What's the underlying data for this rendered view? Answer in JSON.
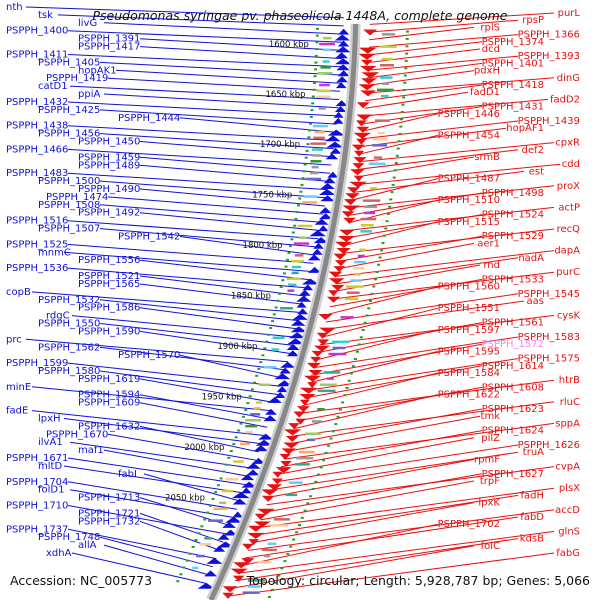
{
  "title": "Pseudomonas syringae pv. phaseolicola 1448A, complete genome",
  "footer": {
    "accession": "Accession: NC_005773",
    "summary": "Topology: circular; Length: 5,928,787 bp; Genes: 5,066"
  },
  "colors": {
    "reverse": "#1010d8",
    "forward": "#e81010",
    "highlight": "#ee88ee",
    "backbone": "#888888",
    "tick": "#2a9a2a",
    "text": "#111111"
  },
  "scale_ticks": [
    "1600 kbp",
    "1650 kbp",
    "1700 kbp",
    "1750 kbp",
    "1800 kbp",
    "1850 kbp",
    "1900 kbp",
    "1950 kbp",
    "2000 kbp",
    "2050 kbp"
  ],
  "left_labels": [
    "nth",
    "tsk",
    "livG",
    "PSPPH_1400",
    "PSPPH_1391",
    "PSPPH_1417",
    "PSPPH_1411",
    "PSPPH_1405",
    "hopAK1",
    "PSPPH_1419",
    "catD1",
    "ppiA",
    "PSPPH_1432",
    "PSPPH_1425",
    "PSPPH_1444",
    "PSPPH_1438",
    "PSPPH_1456",
    "PSPPH_1450",
    "PSPPH_1466",
    "PSPPH_1459",
    "PSPPH_1489",
    "PSPPH_1483",
    "PSPPH_1500",
    "PSPPH_1490",
    "PSPPH_1474",
    "PSPPH_1508",
    "PSPPH_1492",
    "PSPPH_1516",
    "PSPPH_1507",
    "PSPPH_1542",
    "PSPPH_1525",
    "mnmC",
    "PSPPH_1556",
    "PSPPH_1536",
    "PSPPH_1521",
    "PSPPH_1565",
    "copB",
    "PSPPH_1532",
    "PSPPH_1586",
    "rdgC",
    "PSPPH_1550",
    "PSPPH_1590",
    "prc",
    "PSPPH_1562",
    "PSPPH_1570",
    "PSPPH_1599",
    "PSPPH_1580",
    "PSPPH_1619",
    "minE",
    "PSPPH_1594",
    "PSPPH_1609",
    "fadE",
    "lpxH",
    "PSPPH_1632",
    "PSPPH_1670",
    "ilvA1",
    "maf1",
    "PSPPH_1671",
    "mltD",
    "fabI",
    "PSPPH_1704",
    "folD1",
    "PSPPH_1713",
    "PSPPH_1710",
    "PSPPH_1721",
    "PSPPH_1732",
    "PSPPH_1737",
    "PSPPH_1748",
    "allA",
    "xdhA"
  ],
  "right_labels": [
    "purL",
    "rpsP",
    "rplS",
    "PSPPH_1366",
    "PSPPH_1374",
    "dcd",
    "PSPPH_1393",
    "PSPPH_1401",
    "pdxH",
    "dinG",
    "PSPPH_1418",
    "fadD1",
    "fadD2",
    "PSPPH_1431",
    "PSPPH_1446",
    "PSPPH_1439",
    "hopAF1",
    "PSPPH_1454",
    "cpxR",
    "def2",
    "srmB",
    "cdd",
    "est",
    "PSPPH_1487",
    "proX",
    "PSPPH_1498",
    "PSPPH_1510",
    "actP",
    "PSPPH_1524",
    "PSPPH_1515",
    "recQ",
    "PSPPH_1529",
    "aer1",
    "dapA",
    "nadA",
    "rnd",
    "purC",
    "PSPPH_1533",
    "PSPPH_1560",
    "PSPPH_1545",
    "aas",
    "PSPPH_1551",
    "cysK",
    "PSPPH_1561",
    "PSPPH_1597",
    "PSPPH_1583",
    "PSPPH_1572",
    "PSPPH_1595",
    "PSPPH_1575",
    "PSPPH_1614",
    "PSPPH_1584",
    "htrB",
    "PSPPH_1608",
    "PSPPH_1622",
    "rluC",
    "PSPPH_1623",
    "tmk",
    "sppA",
    "PSPPH_1624",
    "pilZ",
    "PSPPH_1626",
    "truA",
    "rpmF",
    "cvpA",
    "PSPPH_1627",
    "trpF",
    "plsX",
    "fadH",
    "lpxK",
    "accD",
    "fabD",
    "PSPPH_1702",
    "glnS",
    "kdsB",
    "folC",
    "fabG"
  ],
  "highlight_label": "PSPPH_1572"
}
